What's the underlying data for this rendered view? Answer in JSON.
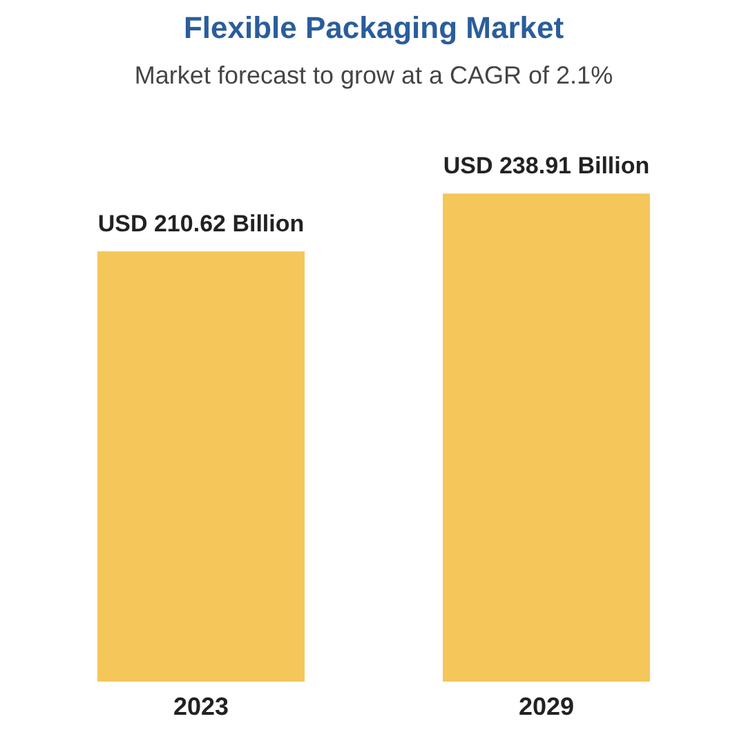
{
  "chart_data": {
    "type": "bar",
    "title": "Flexible Packaging Market",
    "subtitle": "Market forecast to grow at a CAGR of 2.1%",
    "categories": [
      "2023",
      "2029"
    ],
    "values": [
      210.62,
      238.91
    ],
    "colors": [
      "#f5c75a",
      "#f5c75a"
    ],
    "value_labels": [
      "USD 210.62 Billion",
      "USD 238.91 Billion"
    ]
  }
}
